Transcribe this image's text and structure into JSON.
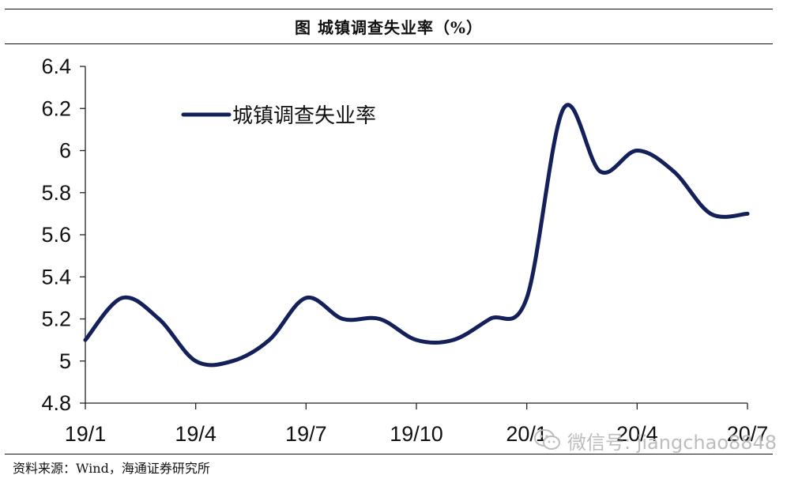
{
  "header": {
    "title": "图  城镇调查失业率（%）"
  },
  "source": {
    "text": "资料来源：Wind，海通证券研究所"
  },
  "watermark": {
    "text": "微信号: jiangchao8848",
    "icon": "wechat-icon"
  },
  "colors": {
    "line": "#14205a",
    "axis": "#222222",
    "text": "#111111",
    "watermark": "#bdbdbd"
  },
  "chart_data": {
    "type": "line",
    "x": [
      "19/1",
      "19/2",
      "19/3",
      "19/4",
      "19/5",
      "19/6",
      "19/7",
      "19/8",
      "19/9",
      "19/10",
      "19/11",
      "19/12",
      "20/1",
      "20/2",
      "20/3",
      "20/4",
      "20/5",
      "20/6",
      "20/7"
    ],
    "categories_shown": [
      "19/1",
      "19/4",
      "19/7",
      "19/10",
      "20/1",
      "20/4",
      "20/7"
    ],
    "series": [
      {
        "name": "城镇调查失业率",
        "values": [
          5.1,
          5.3,
          5.2,
          5.0,
          5.0,
          5.1,
          5.3,
          5.2,
          5.2,
          5.1,
          5.1,
          5.2,
          5.3,
          6.2,
          5.9,
          6.0,
          5.9,
          5.7,
          5.7
        ]
      }
    ],
    "yticks": [
      "4.8",
      "5",
      "5.2",
      "5.4",
      "5.6",
      "5.8",
      "6",
      "6.2",
      "6.4"
    ],
    "ylim": [
      4.8,
      6.4
    ],
    "grid": false,
    "legend": "top-left"
  }
}
